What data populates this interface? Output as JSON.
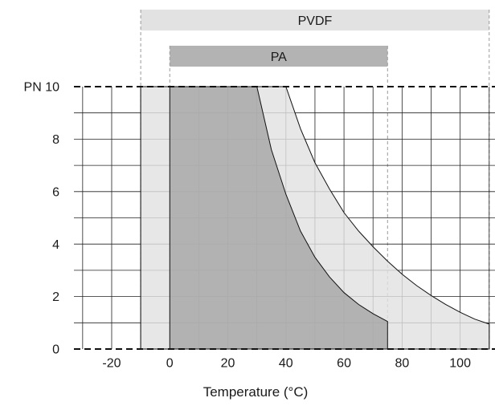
{
  "chart_data": {
    "type": "area",
    "xlabel": "Temperature (°C)",
    "xlim": [
      -33,
      112
    ],
    "ylim": [
      0,
      10
    ],
    "x_ticks": [
      {
        "value": -20,
        "label": "-20"
      },
      {
        "value": 0,
        "label": "0"
      },
      {
        "value": 20,
        "label": "20"
      },
      {
        "value": 40,
        "label": "40"
      },
      {
        "value": 60,
        "label": "60"
      },
      {
        "value": 80,
        "label": "80"
      },
      {
        "value": 100,
        "label": "100"
      }
    ],
    "y_ticks": [
      {
        "value": 0,
        "label": "0"
      },
      {
        "value": 2,
        "label": "2"
      },
      {
        "value": 4,
        "label": "4"
      },
      {
        "value": 6,
        "label": "6"
      },
      {
        "value": 8,
        "label": "8"
      },
      {
        "value": 10,
        "label": "PN 10"
      }
    ],
    "grid": true,
    "range_bars": [
      {
        "label": "PVDF",
        "x_start": -10,
        "x_end": 110,
        "color": "#e2e2e2"
      },
      {
        "label": "PA",
        "x_start": 0,
        "x_end": 75,
        "color": "#b3b3b3"
      }
    ],
    "series": [
      {
        "label": "PVDF",
        "color": "#e2e2e2",
        "points": [
          [
            -10,
            0
          ],
          [
            -10,
            10
          ],
          [
            40,
            10
          ],
          [
            45,
            8.4
          ],
          [
            50,
            7.1
          ],
          [
            55,
            6.1
          ],
          [
            60,
            5.2
          ],
          [
            65,
            4.5
          ],
          [
            70,
            3.9
          ],
          [
            75,
            3.35
          ],
          [
            80,
            2.85
          ],
          [
            85,
            2.42
          ],
          [
            90,
            2.04
          ],
          [
            95,
            1.7
          ],
          [
            100,
            1.4
          ],
          [
            105,
            1.14
          ],
          [
            110,
            0.95
          ],
          [
            110,
            0
          ]
        ]
      },
      {
        "label": "PA",
        "color": "#a6a6a6",
        "points": [
          [
            0,
            0
          ],
          [
            0,
            10
          ],
          [
            30,
            10
          ],
          [
            35,
            7.6
          ],
          [
            40,
            5.9
          ],
          [
            45,
            4.5
          ],
          [
            50,
            3.5
          ],
          [
            55,
            2.75
          ],
          [
            60,
            2.15
          ],
          [
            65,
            1.7
          ],
          [
            70,
            1.35
          ],
          [
            75,
            1.05
          ],
          [
            75,
            0
          ]
        ]
      }
    ]
  }
}
